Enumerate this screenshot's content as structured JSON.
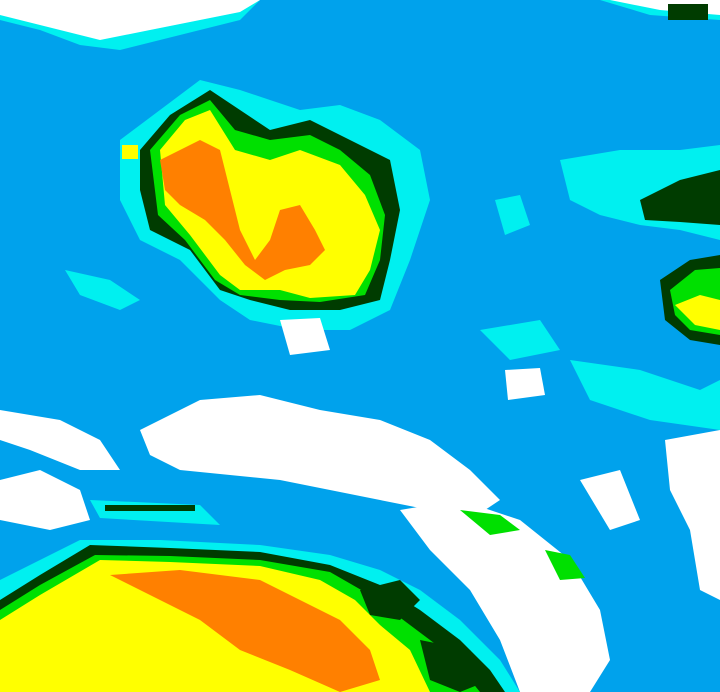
{
  "image": {
    "kind": "false-color classified satellite image",
    "palette": {
      "background": "#00a2ec",
      "cyan": "#00f0f0",
      "white": "#ffffff",
      "dark_green": "#003c00",
      "green": "#00e000",
      "yellow": "#ffff00",
      "orange": "#ff8000"
    }
  }
}
